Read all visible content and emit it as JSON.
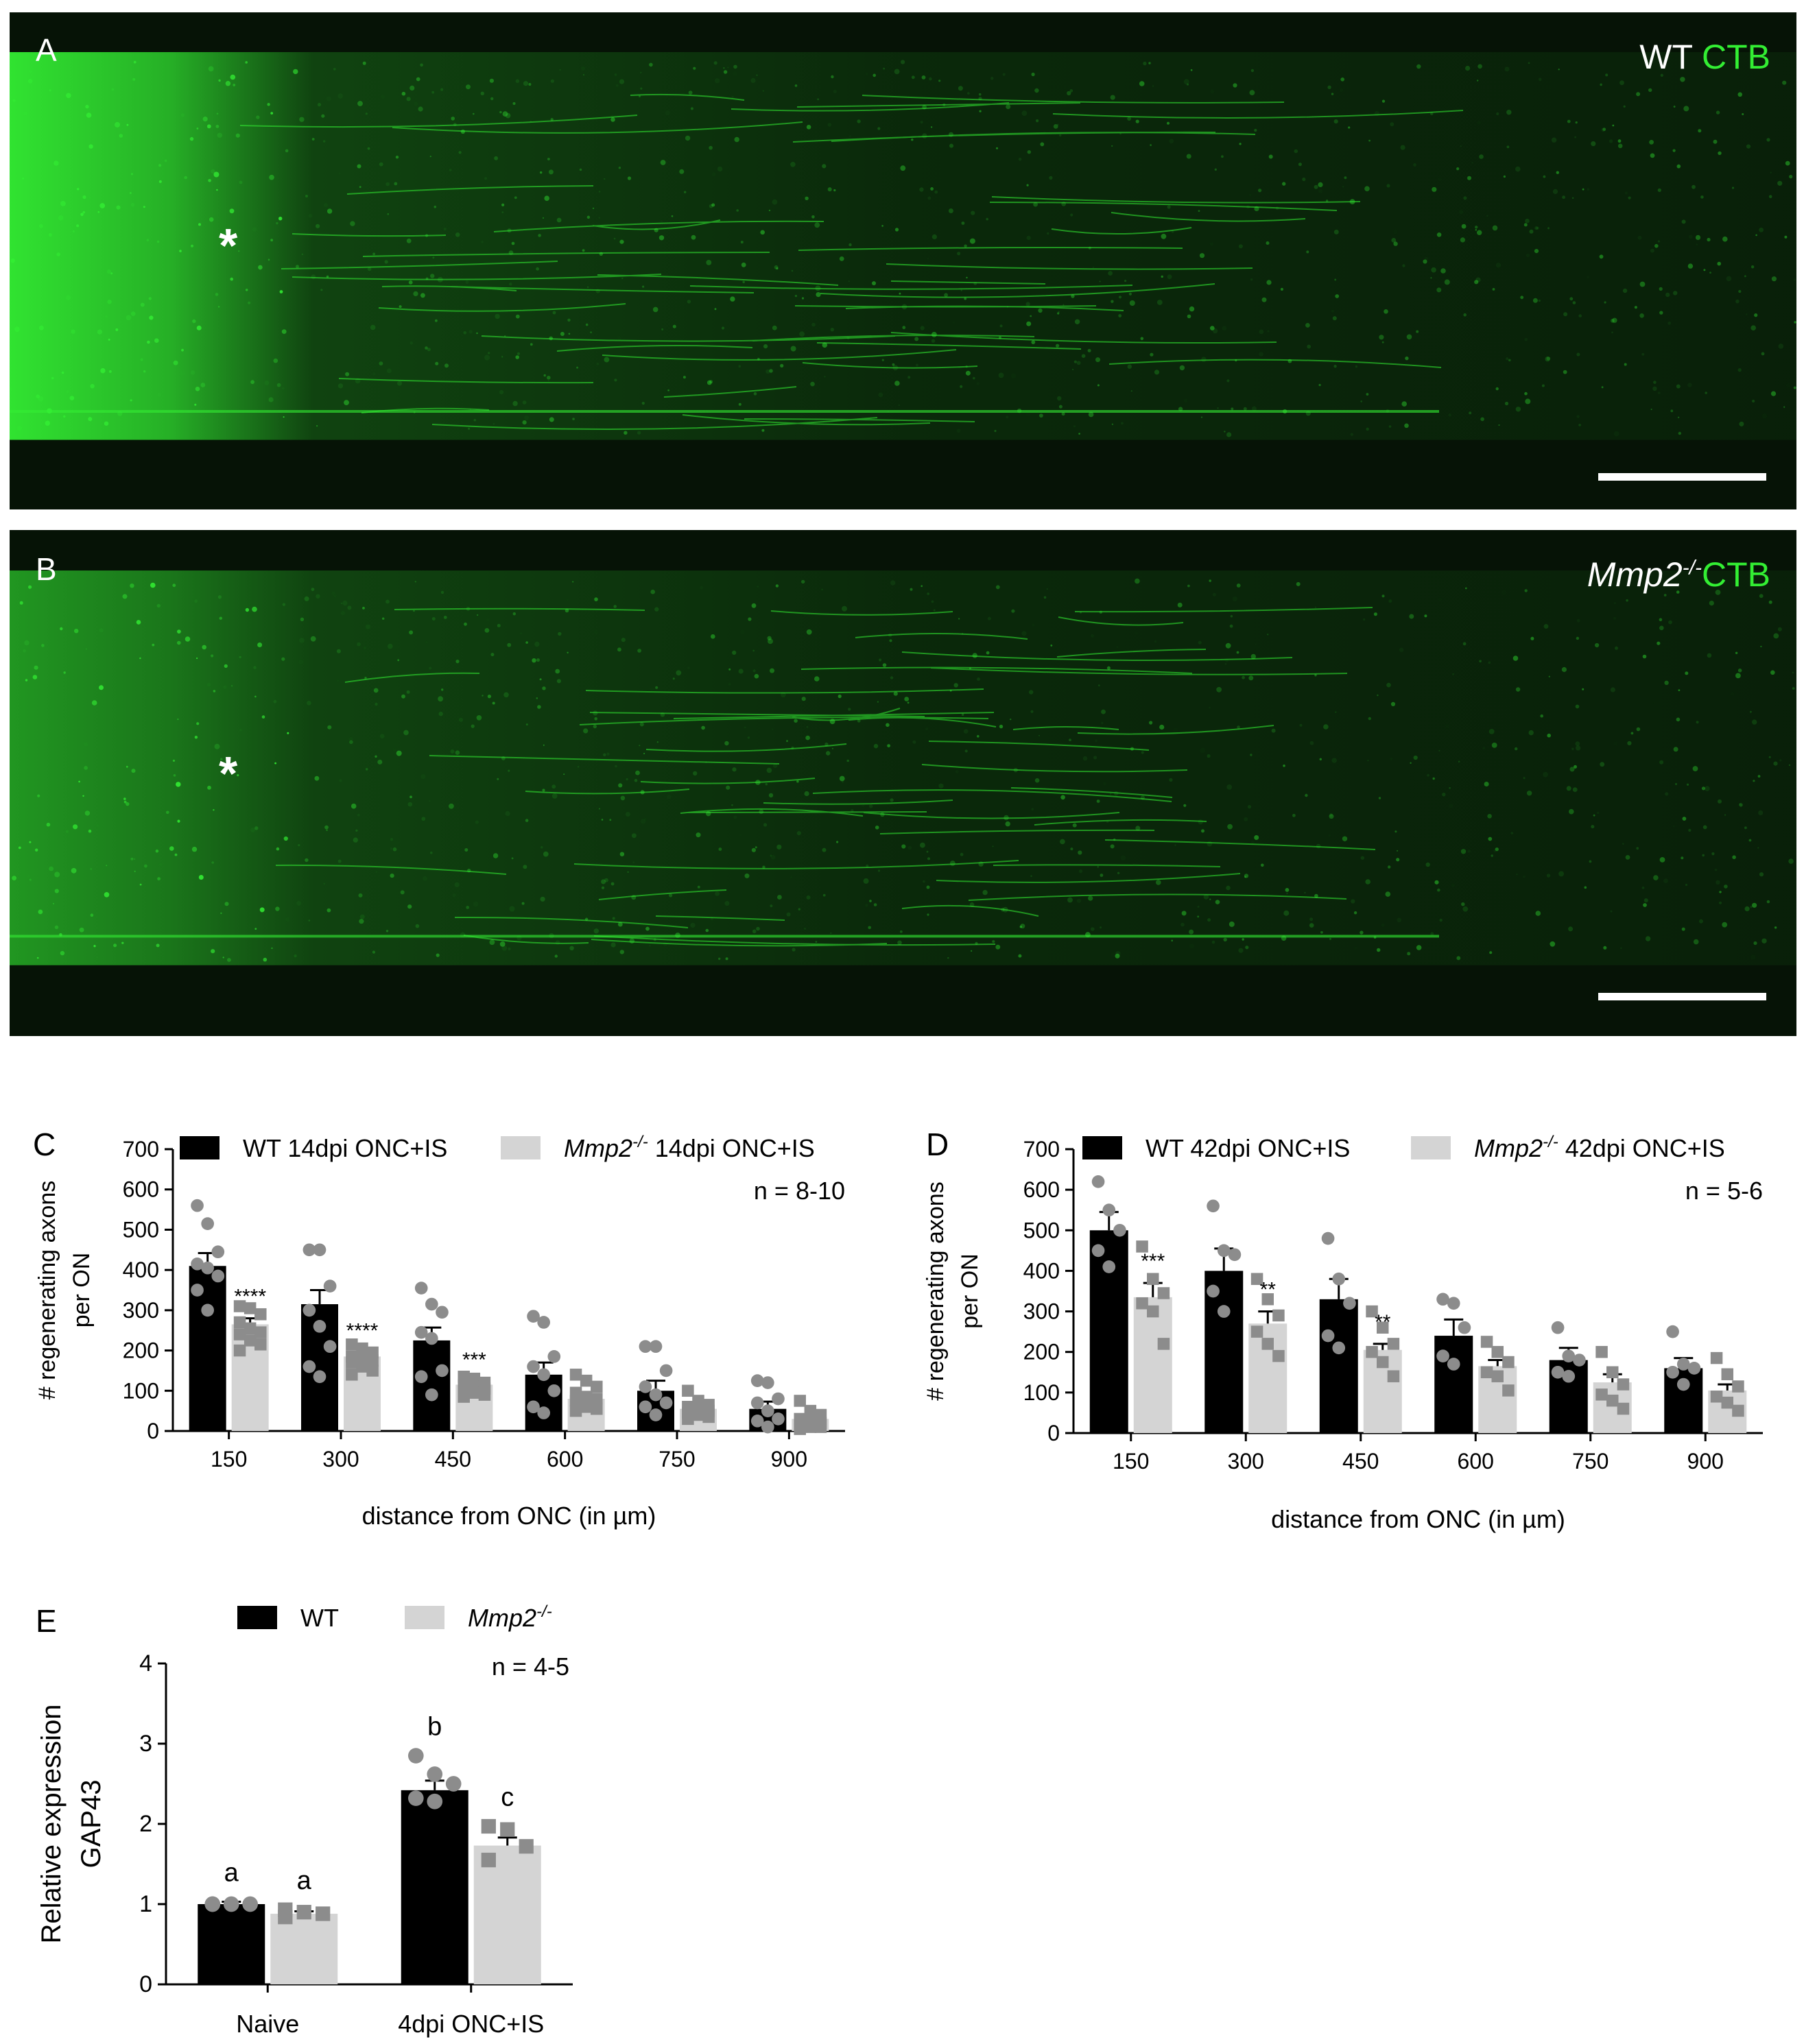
{
  "panels": {
    "a": {
      "letter": "A",
      "genotype": "WT",
      "stain": "CTB",
      "marker": "*"
    },
    "b": {
      "letter": "B",
      "genotype": "Mmp2",
      "genotype_sup": "-/-",
      "stain": "CTB",
      "marker": "*"
    }
  },
  "colors": {
    "wt": "#000000",
    "mmp2": "#d4d4d4",
    "wt_points": "#8c8c8c",
    "mmp2_points": "#8c8c8c",
    "micro_green": "#33ee33"
  },
  "chart_data": [
    {
      "id": "C",
      "letter": "C",
      "type": "bar",
      "categories": [
        "150",
        "300",
        "450",
        "600",
        "750",
        "900"
      ],
      "xlabel": "distance from ONC (in µm)",
      "ylabel": [
        "# regenerating axons",
        "per ON"
      ],
      "ylim": [
        0,
        700
      ],
      "yticks": [
        0,
        100,
        200,
        300,
        400,
        500,
        600,
        700
      ],
      "n_label": "n = 8-10",
      "legend": [
        {
          "name": "WT 14dpi ONC+IS"
        },
        {
          "name": "Mmp2",
          "sup": "-/-",
          "suffix": " 14dpi ONC+IS"
        }
      ],
      "series": [
        {
          "name": "WT 14dpi ONC+IS",
          "values": [
            410,
            315,
            225,
            140,
            100,
            55
          ],
          "sem": [
            32,
            35,
            32,
            30,
            25,
            18
          ],
          "points": [
            [
              560,
              515,
              445,
              415,
              405,
              385,
              350,
              300
            ],
            [
              450,
              450,
              360,
              300,
              260,
              210,
              160,
              135
            ],
            [
              355,
              315,
              295,
              245,
              230,
              150,
              135,
              90
            ],
            [
              285,
              270,
              185,
              160,
              140,
              100,
              60,
              45
            ],
            [
              210,
              210,
              150,
              110,
              90,
              70,
              60,
              40
            ],
            [
              125,
              120,
              80,
              70,
              50,
              30,
              25,
              10
            ]
          ]
        },
        {
          "name": "Mmp2-/- 14dpi ONC+IS",
          "values": [
            265,
            185,
            115,
            80,
            55,
            30
          ],
          "sem": [
            15,
            10,
            8,
            10,
            7,
            6
          ],
          "points": [
            [
              310,
              305,
              290,
              270,
              255,
              245,
              240,
              225,
              215,
              200
            ],
            [
              215,
              205,
              195,
              185,
              180,
              175,
              170,
              160,
              150,
              140
            ],
            [
              135,
              130,
              120,
              115,
              110,
              105,
              100,
              95,
              90,
              85
            ],
            [
              140,
              125,
              110,
              95,
              85,
              80,
              75,
              60,
              55,
              50
            ],
            [
              100,
              75,
              65,
              60,
              55,
              50,
              45,
              40,
              35,
              30
            ],
            [
              75,
              50,
              40,
              30,
              25,
              20,
              15,
              10,
              10,
              5
            ]
          ]
        }
      ],
      "significance": [
        "****",
        "****",
        "***",
        "",
        "",
        ""
      ]
    },
    {
      "id": "D",
      "letter": "D",
      "type": "bar",
      "categories": [
        "150",
        "300",
        "450",
        "600",
        "750",
        "900"
      ],
      "xlabel": "distance from ONC (in µm)",
      "ylabel": [
        "# regenerating axons",
        "per ON"
      ],
      "ylim": [
        0,
        700
      ],
      "yticks": [
        0,
        100,
        200,
        300,
        400,
        500,
        600,
        700
      ],
      "n_label": "n = 5-6",
      "legend": [
        {
          "name": "WT 42dpi ONC+IS"
        },
        {
          "name": "Mmp2",
          "sup": "-/-",
          "suffix": " 42dpi ONC+IS"
        }
      ],
      "series": [
        {
          "name": "WT 42dpi ONC+IS",
          "values": [
            500,
            400,
            330,
            240,
            180,
            160
          ],
          "sem": [
            45,
            55,
            50,
            40,
            30,
            25
          ],
          "points": [
            [
              620,
              550,
              500,
              450,
              410
            ],
            [
              560,
              450,
              440,
              350,
              300
            ],
            [
              480,
              380,
              320,
              240,
              210
            ],
            [
              330,
              320,
              260,
              190,
              170
            ],
            [
              260,
              190,
              180,
              150,
              140
            ],
            [
              250,
              170,
              160,
              150,
              120
            ]
          ]
        },
        {
          "name": "Mmp2-/- 42dpi ONC+IS",
          "values": [
            335,
            270,
            205,
            165,
            125,
            105
          ],
          "sem": [
            35,
            30,
            15,
            15,
            20,
            15
          ],
          "points": [
            [
              460,
              380,
              345,
              320,
              300,
              220
            ],
            [
              380,
              330,
              290,
              250,
              220,
              190
            ],
            [
              300,
              260,
              220,
              200,
              175,
              140
            ],
            [
              225,
              200,
              175,
              150,
              140,
              105
            ],
            [
              200,
              150,
              120,
              95,
              80,
              60
            ],
            [
              185,
              145,
              115,
              90,
              75,
              55
            ]
          ]
        }
      ],
      "significance": [
        "***",
        "**",
        "**",
        "",
        "",
        ""
      ]
    },
    {
      "id": "E",
      "letter": "E",
      "type": "bar",
      "categories": [
        "Naive",
        "4dpi ONC+IS"
      ],
      "xlabel": "",
      "ylabel": [
        "Relative expression",
        "GAP43"
      ],
      "ylim": [
        0,
        4
      ],
      "yticks": [
        0,
        1,
        2,
        3,
        4
      ],
      "n_label": "n = 4-5",
      "legend": [
        {
          "name": "WT"
        },
        {
          "name": "Mmp2",
          "sup": "-/-",
          "suffix": ""
        }
      ],
      "series": [
        {
          "name": "WT",
          "values": [
            1.0,
            2.42
          ],
          "sem": [
            0.03,
            0.12
          ],
          "points": [
            [
              1.0,
              1.0,
              1.0,
              1.0
            ],
            [
              2.85,
              2.62,
              2.5,
              2.32,
              2.28
            ]
          ]
        },
        {
          "name": "Mmp2-/-",
          "values": [
            0.88,
            1.73
          ],
          "sem": [
            0.03,
            0.1
          ],
          "points": [
            [
              0.93,
              0.9,
              0.88,
              0.84
            ],
            [
              1.97,
              1.93,
              1.72,
              1.55
            ]
          ]
        }
      ],
      "significance": [
        [
          "a",
          "a"
        ],
        [
          "b",
          "c"
        ]
      ]
    }
  ]
}
